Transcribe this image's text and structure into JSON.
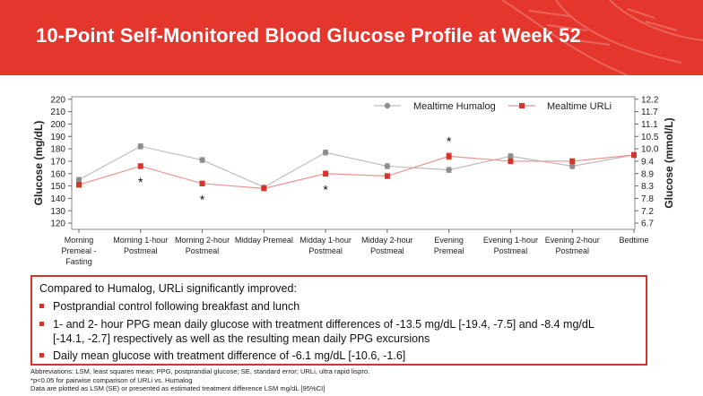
{
  "header": {
    "title": "10-Point Self-Monitored Blood Glucose Profile at Week 52"
  },
  "chart_data": {
    "type": "line",
    "ylabel": "Glucose (mg/dL)",
    "y2label": "Glucose (mmol/L)",
    "ylim": [
      115,
      222
    ],
    "yticks": [
      120,
      130,
      140,
      150,
      160,
      170,
      180,
      190,
      200,
      210,
      220
    ],
    "y2ticks": [
      "6.7",
      "7.2",
      "7.8",
      "8.3",
      "8.9",
      "9.4",
      "10.0",
      "10.5",
      "11.1",
      "11.7",
      "12.2"
    ],
    "categories": [
      [
        "Morning",
        "Premeal -",
        "Fasting"
      ],
      [
        "Morning 1-hour",
        "Postmeal"
      ],
      [
        "Morning 2-hour",
        "Postmeal"
      ],
      [
        "Midday Premeal"
      ],
      [
        "Midday 1-hour",
        "Postmeal"
      ],
      [
        "Midday 2-hour",
        "Postmeal"
      ],
      [
        "Evening",
        "Premeal"
      ],
      [
        "Evening 1-hour",
        "Postmeal"
      ],
      [
        "Evening 2-hour",
        "Postmeal"
      ],
      [
        "Bedtime"
      ]
    ],
    "series": [
      {
        "name": "Mealtime Humalog",
        "color": "#8c8c8c",
        "marker": "circle",
        "values": [
          155,
          182,
          171,
          149,
          177,
          166,
          163,
          174,
          166,
          175
        ],
        "se": [
          2,
          2,
          2,
          1.5,
          2,
          2,
          2,
          2,
          2,
          2
        ]
      },
      {
        "name": "Mealtime URLi",
        "color": "#d6342b",
        "marker": "square",
        "values": [
          151,
          166,
          152,
          148,
          160,
          158,
          174,
          170,
          170,
          175
        ],
        "se": [
          2,
          2,
          2,
          1.5,
          2,
          2,
          2.5,
          2,
          2,
          2
        ]
      }
    ],
    "significance": [
      {
        "category_index": 1,
        "label": "*",
        "y": 154
      },
      {
        "category_index": 2,
        "label": "*",
        "y": 140
      },
      {
        "category_index": 4,
        "label": "*",
        "y": 148
      },
      {
        "category_index": 6,
        "label": "*",
        "y": 187
      }
    ],
    "legend_position": "top-right"
  },
  "summary": {
    "intro": "Compared to Humalog, URLi significantly improved:",
    "bullets": [
      [
        "Postprandial control following breakfast and lunch"
      ],
      [
        "1- and 2- hour PPG mean daily glucose with treatment differences of -13.5 mg/dL [-19.4, -7.5] and -8.4 mg/dL",
        "[-14.1, -2.7] respectively as well as the resulting mean daily PPG excursions"
      ],
      [
        "Daily mean glucose with treatment difference of -6.1 mg/dL [-10.6, -1.6]"
      ]
    ]
  },
  "footnotes": [
    "Abbreviations: LSM, least squares mean; PPG, postprandial glucose; SE, standard error; URLi, ultra rapid lispro.",
    "*p<0.05 for pairwise comparison of URLi vs. Humalog",
    "Data are plotted as LSM (SE) or presented as estimated treatment difference LSM mg/dL [95%CI]"
  ]
}
